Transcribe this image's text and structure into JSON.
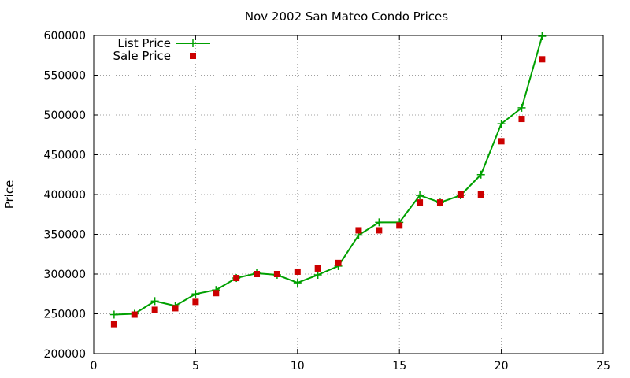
{
  "chart_data": {
    "type": "line",
    "title": "Nov 2002 San Mateo Condo Prices",
    "xlabel": "",
    "ylabel": "Price",
    "xlim": [
      0,
      25
    ],
    "ylim": [
      200000,
      600000
    ],
    "xticks": [
      0,
      5,
      10,
      15,
      20,
      25
    ],
    "yticks": [
      200000,
      250000,
      300000,
      350000,
      400000,
      450000,
      500000,
      550000,
      600000
    ],
    "grid": true,
    "legend_position": "top-left",
    "series": [
      {
        "name": "List Price",
        "style": "line-with-plus-markers",
        "color": "#00a000",
        "x": [
          1,
          2,
          3,
          4,
          5,
          6,
          7,
          8,
          9,
          10,
          11,
          12,
          13,
          14,
          15,
          16,
          17,
          18,
          19,
          20,
          21,
          22
        ],
        "y": [
          249000,
          250000,
          266000,
          260000,
          275000,
          280000,
          295000,
          301000,
          299000,
          289000,
          299000,
          310000,
          349000,
          365000,
          365000,
          399000,
          390000,
          399000,
          425000,
          489000,
          509000,
          599000
        ]
      },
      {
        "name": "Sale Price",
        "style": "square-markers",
        "color": "#cc0000",
        "x": [
          1,
          2,
          3,
          4,
          5,
          6,
          7,
          8,
          9,
          10,
          11,
          12,
          13,
          14,
          15,
          16,
          17,
          18,
          19,
          20,
          21,
          22
        ],
        "y": [
          237000,
          249000,
          255000,
          257000,
          265000,
          276000,
          295000,
          300000,
          300000,
          303000,
          307000,
          314000,
          355000,
          355000,
          361000,
          390000,
          390000,
          400000,
          400000,
          467000,
          495000,
          570000
        ]
      }
    ]
  }
}
